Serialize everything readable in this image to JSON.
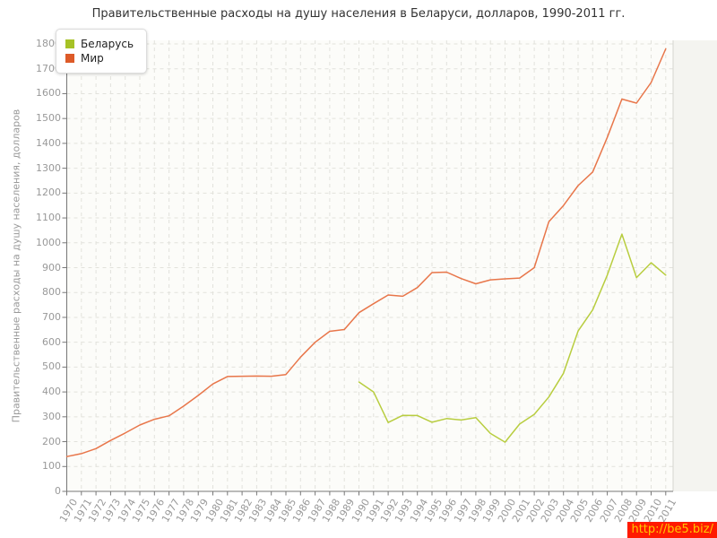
{
  "title": "Правительственные расходы на душу населения в Беларуси, долларов, 1990-2011 гг.",
  "legend": {
    "items": [
      {
        "label": "Беларусь",
        "color": "#a6c226"
      },
      {
        "label": "Мир",
        "color": "#dd5a28"
      }
    ]
  },
  "y_axis": {
    "title": "Правительственные расходы на душу населения, долларов",
    "ticks": [
      0,
      100,
      200,
      300,
      400,
      500,
      600,
      700,
      800,
      900,
      1000,
      1100,
      1200,
      1300,
      1400,
      1500,
      1600,
      1700,
      1800
    ]
  },
  "watermark": {
    "text": "http://be5.biz/",
    "bg_color": "#ff1a00",
    "text_color": "#ffc800"
  },
  "style_colors": {
    "plot_bg": "#fcfcf9",
    "outside_strip": "#f4f4f0",
    "grid": "#e2e2dc",
    "axis": "#777777",
    "right_border": "#d6d6d1"
  },
  "chart_data": {
    "type": "line",
    "title": "Правительственные расходы на душу населения в Беларуси, долларов, 1990-2011 гг.",
    "xlabel": "",
    "ylabel": "Правительственные расходы на душу населения, долларов",
    "ylim": [
      0,
      1800
    ],
    "grid": true,
    "legend_position": "top-left",
    "x": [
      1970,
      1971,
      1972,
      1973,
      1974,
      1975,
      1976,
      1977,
      1978,
      1979,
      1980,
      1981,
      1982,
      1983,
      1984,
      1985,
      1986,
      1987,
      1988,
      1989,
      1990,
      1991,
      1992,
      1993,
      1994,
      1995,
      1996,
      1997,
      1998,
      1999,
      2000,
      2001,
      2002,
      2003,
      2004,
      2005,
      2006,
      2007,
      2008,
      2009,
      2010,
      2011
    ],
    "series": [
      {
        "name": "Беларусь",
        "slug": "belarus",
        "color": "#b8cd3f",
        "values": [
          null,
          null,
          null,
          null,
          null,
          null,
          null,
          null,
          null,
          null,
          null,
          null,
          null,
          null,
          null,
          null,
          null,
          null,
          null,
          null,
          440,
          400,
          277,
          306,
          305,
          278,
          293,
          287,
          297,
          233,
          198,
          271,
          310,
          380,
          475,
          645,
          730,
          870,
          1035,
          860,
          920,
          870
        ]
      },
      {
        "name": "Мир",
        "slug": "world",
        "color": "#e8764a",
        "values": [
          140,
          152,
          172,
          205,
          235,
          267,
          290,
          304,
          343,
          386,
          432,
          462,
          463,
          464,
          463,
          470,
          540,
          600,
          644,
          651,
          719,
          755,
          790,
          785,
          820,
          880,
          882,
          856,
          835,
          851,
          855,
          858,
          900,
          1085,
          1150,
          1230,
          1285,
          1424,
          1578,
          1562,
          1645,
          1780
        ]
      }
    ]
  }
}
